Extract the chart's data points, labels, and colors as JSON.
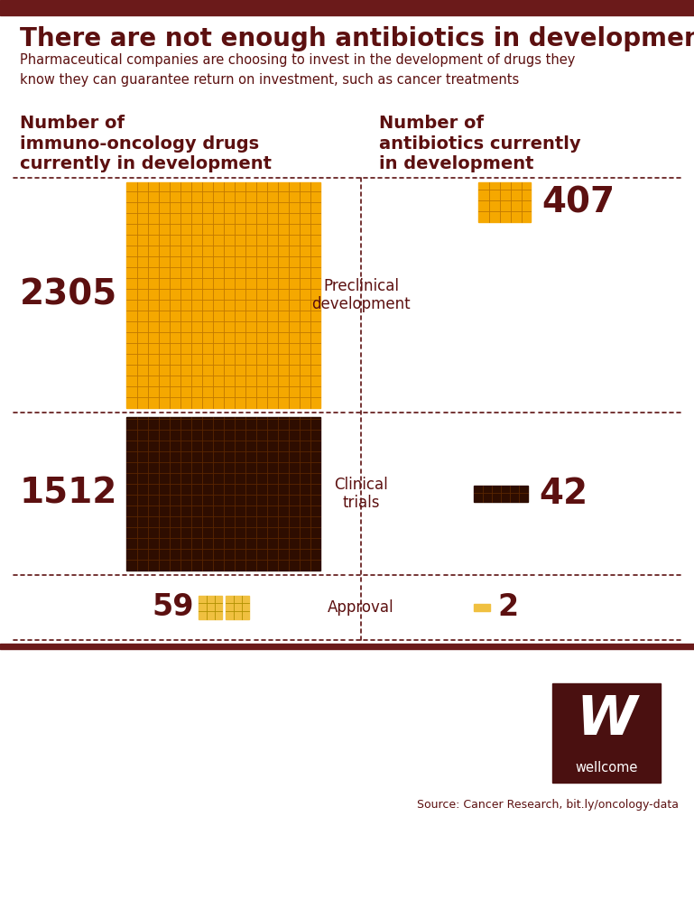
{
  "title": "There are not enough antibiotics in development",
  "subtitle": "Pharmaceutical companies are choosing to invest in the development of drugs they\nknow they can guarantee return on investment, such as cancer treatments",
  "left_header_line1": "Number of",
  "left_header_line2": "immuno-oncology drugs",
  "left_header_line3": "currently in development",
  "right_header_line1": "Number of",
  "right_header_line2": "antibiotics currently",
  "right_header_line3": "in development",
  "top_bar_color": "#6B1A1A",
  "orange_color": "#F5A800",
  "dark_brown_color": "#2E0D00",
  "yellow_color": "#F0C040",
  "bg_color": "#FFFFFF",
  "text_color": "#5c1010",
  "preclinical_immuno": 2305,
  "preclinical_antibiotic": 407,
  "clinical_immuno": 1512,
  "clinical_antibiotic": 42,
  "approval_immuno": 59,
  "approval_antibiotic": 2,
  "label_preclinical": "Preclinical\ndevelopment",
  "label_clinical": "Clinical\ntrials",
  "label_approval": "Approval",
  "source_text": "Source: Cancer Research, bit.ly/oncology-data",
  "wellcome_color": "#4A1010"
}
